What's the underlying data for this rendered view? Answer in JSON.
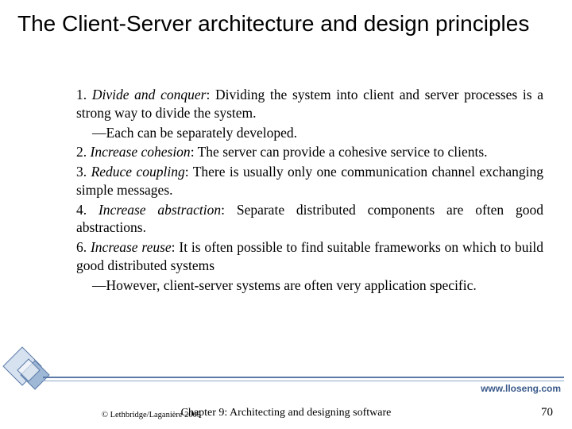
{
  "title": "The Client-Server architecture and design principles",
  "items": [
    {
      "num": "1.",
      "principle": "Divide and conquer",
      "text": ": Dividing the system into client and server processes is a strong way to divide the system."
    },
    {
      "sub": "—Each can be separately developed."
    },
    {
      "num": "2.",
      "principle": "Increase cohesion",
      "text": ": The server can provide a cohesive service to clients."
    },
    {
      "num": "3.",
      "principle": "Reduce coupling",
      "text": ": There is usually only one communication channel exchanging simple messages."
    },
    {
      "num": "4.",
      "principle": "Increase abstraction",
      "text": ": Separate distributed components are often good abstractions."
    },
    {
      "num": "6.",
      "principle": "Increase reuse",
      "text": ": It is often possible to find suitable frameworks on which to build good distributed systems"
    },
    {
      "sub": "—However, client-server systems are often very application specific."
    }
  ],
  "url": "www.lloseng.com",
  "copyright": "© Lethbridge/Laganière 2005",
  "chapter": "Chapter 9: Architecting and designing software",
  "pagenum": "70",
  "colors": {
    "line_primary": "#5b7aa8",
    "line_secondary": "#8fa8c8",
    "url_color": "#3a5a8a",
    "diamond_fill_light": "#d6e2f0",
    "diamond_fill_mid": "#9fb8d6",
    "diamond_stroke": "#5b7aa8"
  }
}
